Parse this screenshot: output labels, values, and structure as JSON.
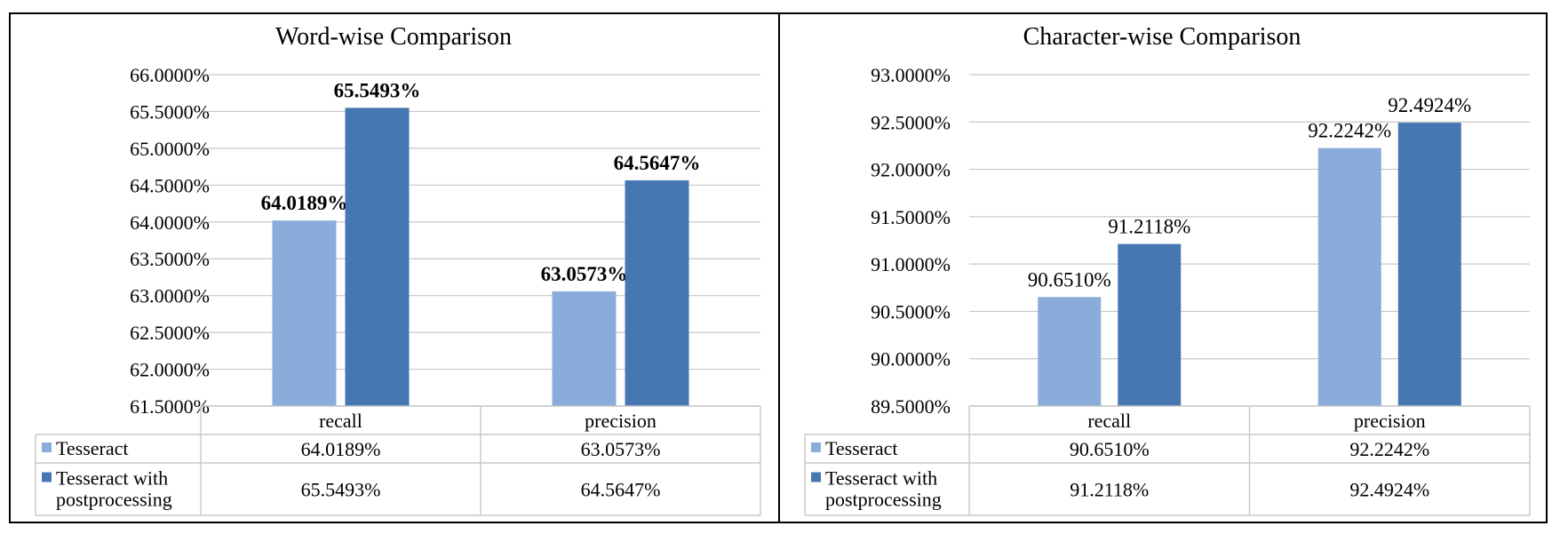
{
  "colors": {
    "series1": "#8AACDA",
    "series2": "#4677B2",
    "grid": "#c8c8c8",
    "border": "#000000"
  },
  "chart_data": [
    {
      "type": "bar",
      "title": "Word-wise Comparison",
      "categories": [
        "recall",
        "precision"
      ],
      "ylim": [
        61.5,
        66.0
      ],
      "ytick_step": 0.5,
      "value_format": "percent_4dp",
      "grid": true,
      "data_labels_bold": true,
      "legend": "data-table",
      "series": [
        {
          "name": "Tesseract",
          "name_lines": [
            "Tesseract"
          ],
          "values": [
            64.0189,
            63.0573
          ],
          "table": [
            "64.0189%",
            "63.0573%"
          ]
        },
        {
          "name": "Tesseract with postprocessing",
          "name_lines": [
            "Tesseract with",
            "postprocessing"
          ],
          "values": [
            65.5493,
            64.5647
          ],
          "table": [
            "65.5493%",
            "64.5647%"
          ]
        }
      ]
    },
    {
      "type": "bar",
      "title": "Character-wise Comparison",
      "categories": [
        "recall",
        "precision"
      ],
      "ylim": [
        89.5,
        93.0
      ],
      "ytick_step": 0.5,
      "value_format": "percent_4dp",
      "grid": true,
      "data_labels_bold": false,
      "legend": "data-table",
      "series": [
        {
          "name": "Tesseract",
          "name_lines": [
            "Tesseract"
          ],
          "values": [
            90.651,
            92.2242
          ],
          "table": [
            "90.6510%",
            "92.2242%"
          ]
        },
        {
          "name": "Tesseract with postprocessing",
          "name_lines": [
            "Tesseract with",
            "postprocessing"
          ],
          "values": [
            91.2118,
            92.4924
          ],
          "table": [
            "91.2118%",
            "92.4924%"
          ]
        }
      ]
    }
  ]
}
